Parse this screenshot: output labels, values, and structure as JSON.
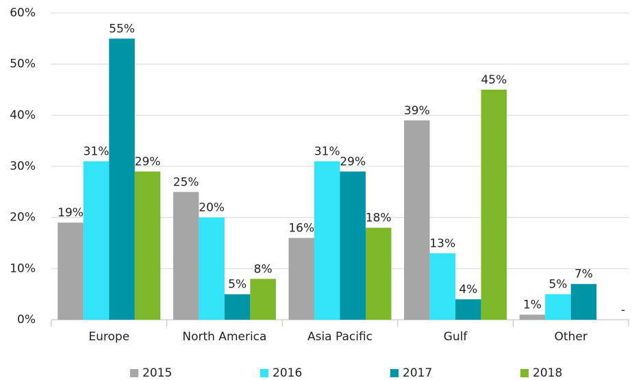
{
  "chart_data": {
    "type": "bar",
    "categories": [
      "Europe",
      "North America",
      "Asia Pacific",
      "Gulf",
      "Other"
    ],
    "series": [
      {
        "name": "2015",
        "color": "#a6a6a6",
        "values": [
          19,
          25,
          16,
          39,
          1
        ],
        "value_labels": [
          "19%",
          "25%",
          "16%",
          "39%",
          "1%"
        ]
      },
      {
        "name": "2016",
        "color": "#33e3f7",
        "values": [
          31,
          20,
          31,
          13,
          5
        ],
        "value_labels": [
          "31%",
          "20%",
          "31%",
          "13%",
          "5%"
        ]
      },
      {
        "name": "2017",
        "color": "#0095a6",
        "values": [
          55,
          5,
          29,
          4,
          7
        ],
        "value_labels": [
          "55%",
          "5%",
          "29%",
          "4%",
          "7%"
        ]
      },
      {
        "name": "2018",
        "color": "#7cb829",
        "values": [
          29,
          8,
          18,
          45,
          null
        ],
        "value_labels": [
          "29%",
          "8%",
          "18%",
          "45%",
          "-"
        ]
      }
    ],
    "ylim": [
      0,
      60
    ],
    "yticks": [
      {
        "value": 0,
        "label": "0%"
      },
      {
        "value": 10,
        "label": "10%"
      },
      {
        "value": 20,
        "label": "20%"
      },
      {
        "value": 30,
        "label": "30%"
      },
      {
        "value": 40,
        "label": "40%"
      },
      {
        "value": 50,
        "label": "50%"
      },
      {
        "value": 60,
        "label": "60%"
      }
    ],
    "grid": true,
    "legend": "bottom"
  }
}
